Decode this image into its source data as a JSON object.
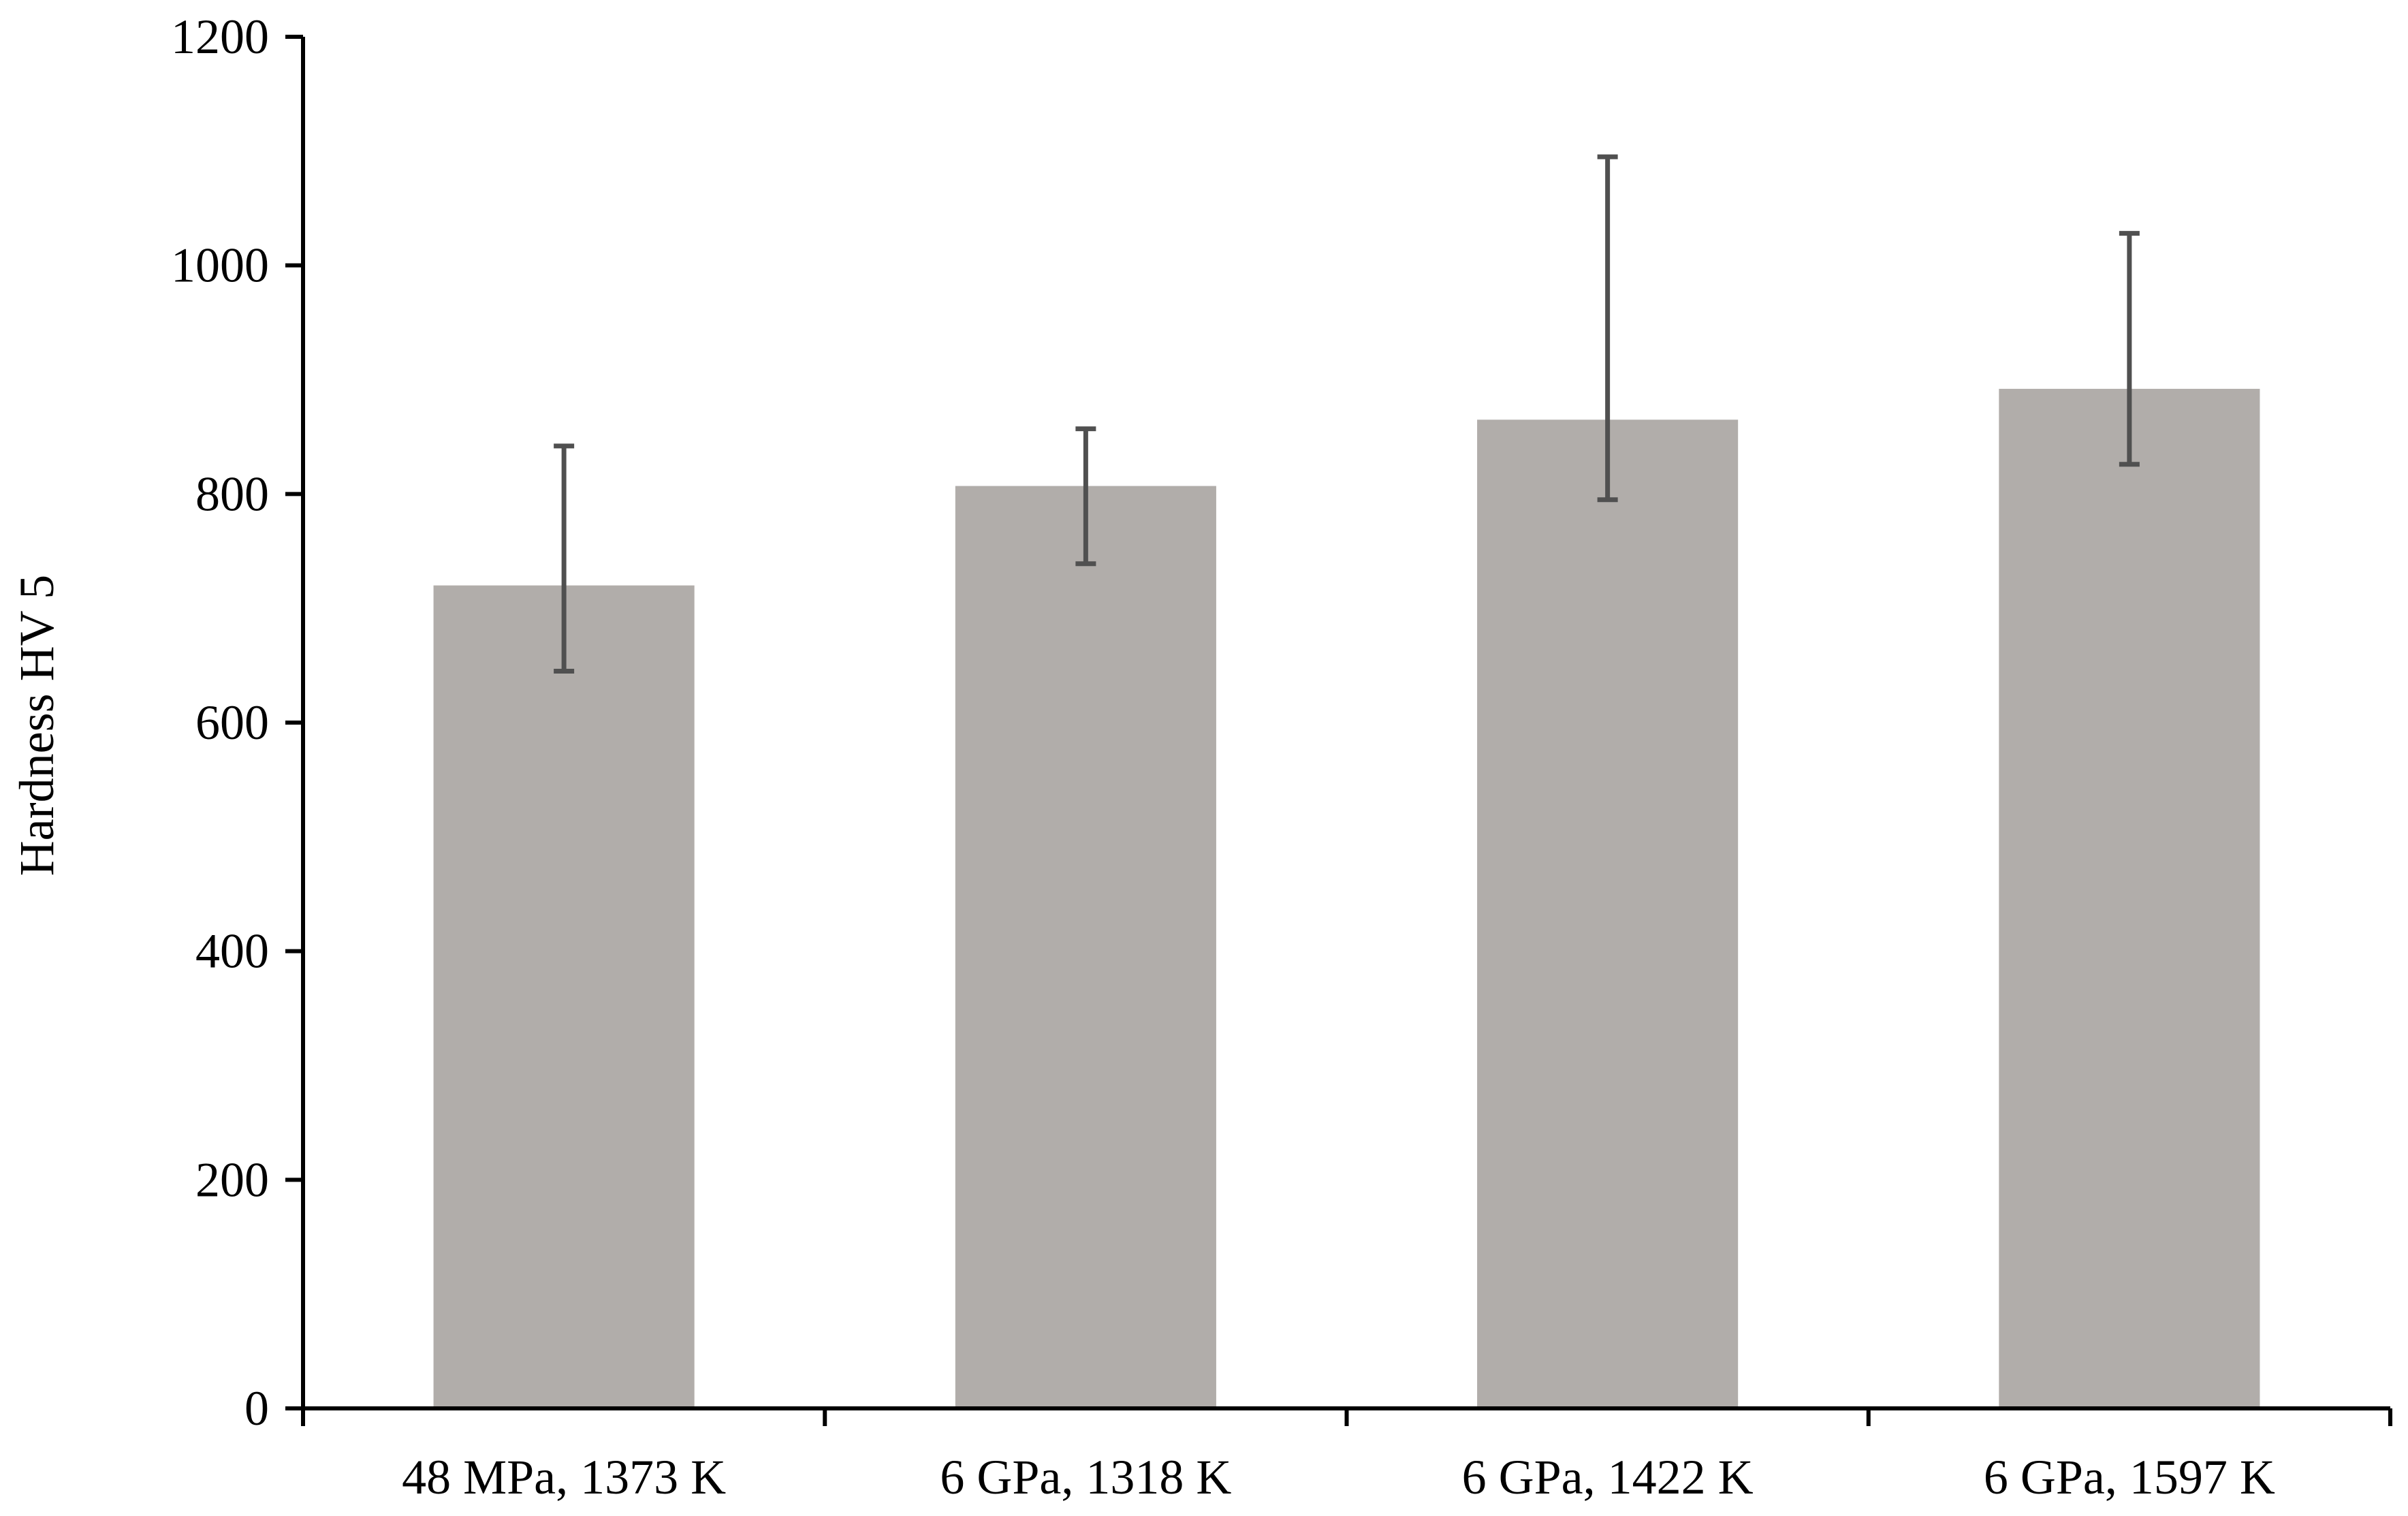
{
  "chart_data": {
    "type": "bar",
    "title": "",
    "xlabel": "",
    "ylabel": "Hardness HV 5",
    "categories": [
      "48 MPa, 1373 K",
      "6 GPa, 1318 K",
      "6 GPa, 1422 K",
      "6 GPa, 1597 K"
    ],
    "values": [
      720,
      807,
      865,
      892
    ],
    "error_low": [
      645,
      739,
      795,
      826
    ],
    "error_high": [
      842,
      857,
      1095,
      1028
    ],
    "ylim": [
      0,
      1200
    ],
    "yticks": [
      "0",
      "200",
      "400",
      "600",
      "800",
      "1000",
      "1200"
    ],
    "grid": false,
    "legend": "none",
    "colors": {
      "bar": "#b1adaa",
      "error_bar": "#505050",
      "axis": "#000000"
    }
  }
}
